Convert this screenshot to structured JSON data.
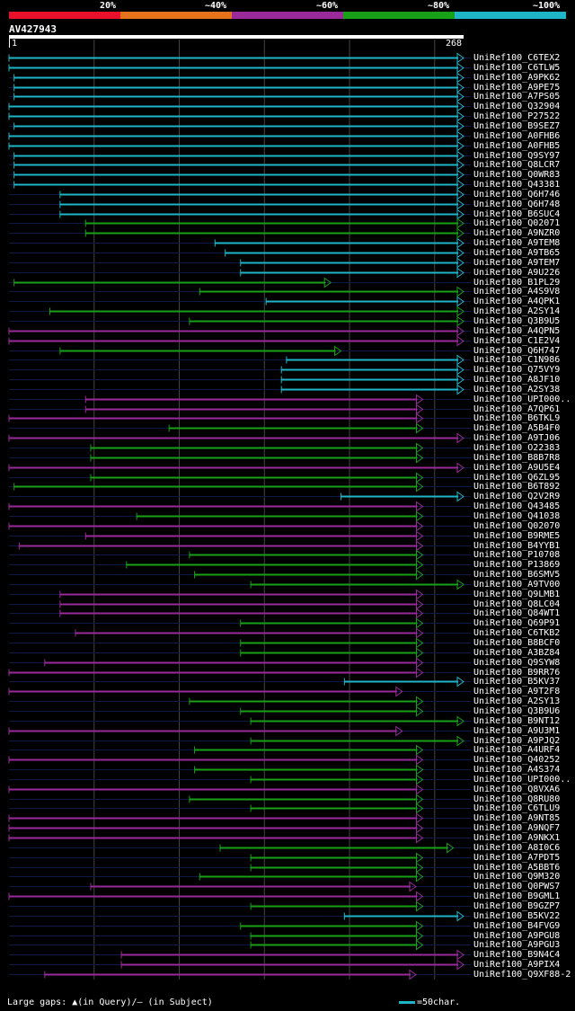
{
  "legend": [
    {
      "label": "20%",
      "color": "#e8102a"
    },
    {
      "label": "~40%",
      "color": "#e6721b"
    },
    {
      "label": "~60%",
      "color": "#9a2a9a"
    },
    {
      "label": "~80%",
      "color": "#17a018"
    },
    {
      "label": "~100%",
      "color": "#1fb5c8"
    }
  ],
  "query": {
    "id": "AV427943",
    "start": "1",
    "end": "268"
  },
  "colors": {
    "c": "#1fb5c8",
    "g": "#17a018",
    "p": "#9a2a9a",
    "grid": "#444"
  },
  "hits": [
    {
      "name": "UniRef100_C6TEX2",
      "s": 1,
      "e": 268,
      "c": "c"
    },
    {
      "name": "UniRef100_C6TLW5",
      "s": 1,
      "e": 268,
      "c": "c"
    },
    {
      "name": "UniRef100_A9PK62",
      "s": 4,
      "e": 268,
      "c": "c"
    },
    {
      "name": "UniRef100_A9PE75",
      "s": 4,
      "e": 268,
      "c": "c"
    },
    {
      "name": "UniRef100_A7PS05",
      "s": 4,
      "e": 268,
      "c": "c"
    },
    {
      "name": "UniRef100_Q32904",
      "s": 1,
      "e": 268,
      "c": "c"
    },
    {
      "name": "UniRef100_P27522",
      "s": 1,
      "e": 268,
      "c": "c"
    },
    {
      "name": "UniRef100_B9SEZ7",
      "s": 4,
      "e": 268,
      "c": "c"
    },
    {
      "name": "UniRef100_A0FHB6",
      "s": 1,
      "e": 268,
      "c": "c"
    },
    {
      "name": "UniRef100_A0FHB5",
      "s": 1,
      "e": 268,
      "c": "c"
    },
    {
      "name": "UniRef100_Q9SY97",
      "s": 4,
      "e": 268,
      "c": "c"
    },
    {
      "name": "UniRef100_Q8LCR7",
      "s": 4,
      "e": 268,
      "c": "c"
    },
    {
      "name": "UniRef100_Q0WR83",
      "s": 4,
      "e": 268,
      "c": "c"
    },
    {
      "name": "UniRef100_Q43381",
      "s": 4,
      "e": 268,
      "c": "c"
    },
    {
      "name": "UniRef100_Q6H746",
      "s": 31,
      "e": 268,
      "c": "c"
    },
    {
      "name": "UniRef100_Q6H748",
      "s": 31,
      "e": 268,
      "c": "c"
    },
    {
      "name": "UniRef100_B6SUC4",
      "s": 31,
      "e": 268,
      "c": "c"
    },
    {
      "name": "UniRef100_Q02071",
      "s": 46,
      "e": 268,
      "c": "g"
    },
    {
      "name": "UniRef100_A9NZR0",
      "s": 46,
      "e": 268,
      "c": "g"
    },
    {
      "name": "UniRef100_A9TEM8",
      "s": 122,
      "e": 268,
      "c": "c"
    },
    {
      "name": "UniRef100_A9TB65",
      "s": 128,
      "e": 268,
      "c": "c"
    },
    {
      "name": "UniRef100_A9TEM7",
      "s": 137,
      "e": 268,
      "c": "c"
    },
    {
      "name": "UniRef100_A9U226",
      "s": 137,
      "e": 268,
      "c": "c"
    },
    {
      "name": "UniRef100_B1PL29",
      "s": 4,
      "e": 190,
      "c": "g"
    },
    {
      "name": "UniRef100_A4S9V8",
      "s": 113,
      "e": 268,
      "c": "g"
    },
    {
      "name": "UniRef100_A4QPK1",
      "s": 152,
      "e": 268,
      "c": "c"
    },
    {
      "name": "UniRef100_A2SY14",
      "s": 25,
      "e": 268,
      "c": "g"
    },
    {
      "name": "UniRef100_Q3B9U5",
      "s": 107,
      "e": 268,
      "c": "g"
    },
    {
      "name": "UniRef100_A4QPN5",
      "s": 1,
      "e": 268,
      "c": "p"
    },
    {
      "name": "UniRef100_C1E2V4",
      "s": 1,
      "e": 268,
      "c": "p"
    },
    {
      "name": "UniRef100_Q6H747",
      "s": 31,
      "e": 196,
      "c": "g"
    },
    {
      "name": "UniRef100_C1N986",
      "s": 164,
      "e": 268,
      "c": "c"
    },
    {
      "name": "UniRef100_Q75VY9",
      "s": 161,
      "e": 268,
      "c": "c"
    },
    {
      "name": "UniRef100_A8JF10",
      "s": 161,
      "e": 268,
      "c": "c"
    },
    {
      "name": "UniRef100_A2SY38",
      "s": 161,
      "e": 268,
      "c": "c"
    },
    {
      "name": "UniRef100_UPI000..",
      "s": 46,
      "e": 244,
      "c": "p"
    },
    {
      "name": "UniRef100_A7QP61",
      "s": 46,
      "e": 244,
      "c": "p"
    },
    {
      "name": "UniRef100_B6TKL9",
      "s": 1,
      "e": 244,
      "c": "p"
    },
    {
      "name": "UniRef100_A5B4F0",
      "s": 95,
      "e": 244,
      "c": "g"
    },
    {
      "name": "UniRef100_A9TJ06",
      "s": 1,
      "e": 268,
      "c": "p"
    },
    {
      "name": "UniRef100_O22383",
      "s": 49,
      "e": 244,
      "c": "g"
    },
    {
      "name": "UniRef100_B8B7R8",
      "s": 49,
      "e": 244,
      "c": "g"
    },
    {
      "name": "UniRef100_A9U5E4",
      "s": 1,
      "e": 268,
      "c": "p"
    },
    {
      "name": "UniRef100_Q6ZL95",
      "s": 49,
      "e": 244,
      "c": "g"
    },
    {
      "name": "UniRef100_B6T892",
      "s": 4,
      "e": 244,
      "c": "g"
    },
    {
      "name": "UniRef100_Q2V2R9",
      "s": 196,
      "e": 268,
      "c": "c"
    },
    {
      "name": "UniRef100_Q43485",
      "s": 1,
      "e": 244,
      "c": "p"
    },
    {
      "name": "UniRef100_Q41038",
      "s": 76,
      "e": 244,
      "c": "g"
    },
    {
      "name": "UniRef100_Q02070",
      "s": 1,
      "e": 244,
      "c": "p"
    },
    {
      "name": "UniRef100_B9RME5",
      "s": 46,
      "e": 244,
      "c": "p"
    },
    {
      "name": "UniRef100_B4YYB1",
      "s": 7,
      "e": 244,
      "c": "p"
    },
    {
      "name": "UniRef100_P10708",
      "s": 107,
      "e": 244,
      "c": "g"
    },
    {
      "name": "UniRef100_P13869",
      "s": 70,
      "e": 244,
      "c": "g"
    },
    {
      "name": "UniRef100_B6SMV5",
      "s": 110,
      "e": 244,
      "c": "g"
    },
    {
      "name": "UniRef100_A9TV00",
      "s": 143,
      "e": 268,
      "c": "g"
    },
    {
      "name": "UniRef100_Q9LMB1",
      "s": 31,
      "e": 244,
      "c": "p"
    },
    {
      "name": "UniRef100_Q8LC04",
      "s": 31,
      "e": 244,
      "c": "p"
    },
    {
      "name": "UniRef100_Q84WT1",
      "s": 31,
      "e": 244,
      "c": "p"
    },
    {
      "name": "UniRef100_Q69P91",
      "s": 137,
      "e": 244,
      "c": "g"
    },
    {
      "name": "UniRef100_C6TKB2",
      "s": 40,
      "e": 244,
      "c": "p"
    },
    {
      "name": "UniRef100_B8BCF0",
      "s": 137,
      "e": 244,
      "c": "g"
    },
    {
      "name": "UniRef100_A3BZ84",
      "s": 137,
      "e": 244,
      "c": "g"
    },
    {
      "name": "UniRef100_Q9SYW8",
      "s": 22,
      "e": 244,
      "c": "p"
    },
    {
      "name": "UniRef100_B9RR76",
      "s": 1,
      "e": 244,
      "c": "p"
    },
    {
      "name": "UniRef100_B5KV37",
      "s": 198,
      "e": 268,
      "c": "c"
    },
    {
      "name": "UniRef100_A9T2F8",
      "s": 1,
      "e": 232,
      "c": "p"
    },
    {
      "name": "UniRef100_A2SY13",
      "s": 107,
      "e": 244,
      "c": "g"
    },
    {
      "name": "UniRef100_Q3B9U6",
      "s": 137,
      "e": 244,
      "c": "g"
    },
    {
      "name": "UniRef100_B9NT12",
      "s": 143,
      "e": 268,
      "c": "g"
    },
    {
      "name": "UniRef100_A9U3M1",
      "s": 1,
      "e": 232,
      "c": "p"
    },
    {
      "name": "UniRef100_A9PJQ2",
      "s": 143,
      "e": 268,
      "c": "g"
    },
    {
      "name": "UniRef100_A4URF4",
      "s": 110,
      "e": 244,
      "c": "g"
    },
    {
      "name": "UniRef100_Q40252",
      "s": 1,
      "e": 244,
      "c": "p"
    },
    {
      "name": "UniRef100_A4S374",
      "s": 110,
      "e": 244,
      "c": "g"
    },
    {
      "name": "UniRef100_UPI000..",
      "s": 143,
      "e": 244,
      "c": "g"
    },
    {
      "name": "UniRef100_Q8VXA6",
      "s": 1,
      "e": 244,
      "c": "p"
    },
    {
      "name": "UniRef100_Q8RU80",
      "s": 107,
      "e": 244,
      "c": "g"
    },
    {
      "name": "UniRef100_C6TLU9",
      "s": 143,
      "e": 244,
      "c": "g"
    },
    {
      "name": "UniRef100_A9NT85",
      "s": 1,
      "e": 244,
      "c": "p"
    },
    {
      "name": "UniRef100_A9NQF7",
      "s": 1,
      "e": 244,
      "c": "p"
    },
    {
      "name": "UniRef100_A9NKX1",
      "s": 1,
      "e": 244,
      "c": "p"
    },
    {
      "name": "UniRef100_A8I0C6",
      "s": 125,
      "e": 262,
      "c": "g"
    },
    {
      "name": "UniRef100_A7PDT5",
      "s": 143,
      "e": 244,
      "c": "g"
    },
    {
      "name": "UniRef100_A5BBT6",
      "s": 143,
      "e": 244,
      "c": "g"
    },
    {
      "name": "UniRef100_Q9M320",
      "s": 113,
      "e": 244,
      "c": "g"
    },
    {
      "name": "UniRef100_Q0PWS7",
      "s": 49,
      "e": 240,
      "c": "p"
    },
    {
      "name": "UniRef100_B9GML1",
      "s": 1,
      "e": 244,
      "c": "p"
    },
    {
      "name": "UniRef100_B9GZP7",
      "s": 143,
      "e": 244,
      "c": "g"
    },
    {
      "name": "UniRef100_B5KV22",
      "s": 198,
      "e": 268,
      "c": "c"
    },
    {
      "name": "UniRef100_B4FVG9",
      "s": 137,
      "e": 244,
      "c": "g"
    },
    {
      "name": "UniRef100_A9PGU8",
      "s": 143,
      "e": 244,
      "c": "g"
    },
    {
      "name": "UniRef100_A9PGU3",
      "s": 143,
      "e": 244,
      "c": "g"
    },
    {
      "name": "UniRef100_B9N4C4",
      "s": 67,
      "e": 268,
      "c": "p"
    },
    {
      "name": "UniRef100_A9PIX4",
      "s": 67,
      "e": 268,
      "c": "p"
    },
    {
      "name": "UniRef100_Q9XF88-2",
      "s": 22,
      "e": 240,
      "c": "p"
    }
  ],
  "footer": {
    "gaps_text": "Large gaps: ▲(in Query)/– (in Subject)",
    "scale_text": "=50char."
  }
}
